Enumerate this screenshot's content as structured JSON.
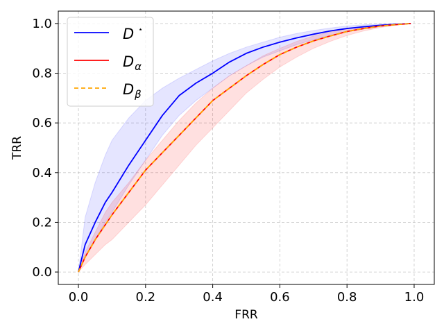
{
  "chart_data": {
    "type": "line",
    "xlabel": "FRR",
    "ylabel": "TRR",
    "xlim": [
      -0.06,
      1.06
    ],
    "ylim": [
      -0.05,
      1.05
    ],
    "xticks": [
      0.0,
      0.2,
      0.4,
      0.6,
      0.8,
      1.0
    ],
    "yticks": [
      0.0,
      0.2,
      0.4,
      0.6,
      0.8,
      1.0
    ],
    "xtick_labels": [
      "0.0",
      "0.2",
      "0.4",
      "0.6",
      "0.8",
      "1.0"
    ],
    "ytick_labels": [
      "0.0",
      "0.2",
      "0.4",
      "0.6",
      "0.8",
      "1.0"
    ],
    "grid": true,
    "legend_position": "top-left",
    "series": [
      {
        "name": "D*",
        "legend_base": "D",
        "legend_mark": "⋆",
        "color": "#0000ff",
        "dash": "solid",
        "x": [
          0.0,
          0.02,
          0.05,
          0.08,
          0.1,
          0.15,
          0.2,
          0.25,
          0.3,
          0.35,
          0.4,
          0.45,
          0.5,
          0.55,
          0.6,
          0.65,
          0.7,
          0.75,
          0.8,
          0.85,
          0.9,
          0.95,
          0.99
        ],
        "y": [
          0.0,
          0.11,
          0.2,
          0.28,
          0.32,
          0.43,
          0.53,
          0.63,
          0.71,
          0.76,
          0.8,
          0.845,
          0.88,
          0.905,
          0.925,
          0.942,
          0.957,
          0.97,
          0.98,
          0.987,
          0.993,
          0.997,
          1.0
        ],
        "band_low": [
          0.0,
          0.06,
          0.13,
          0.2,
          0.24,
          0.35,
          0.45,
          0.55,
          0.63,
          0.69,
          0.74,
          0.79,
          0.83,
          0.865,
          0.89,
          0.915,
          0.935,
          0.952,
          0.967,
          0.978,
          0.988,
          0.995,
          1.0
        ],
        "band_high": [
          0.0,
          0.22,
          0.36,
          0.47,
          0.53,
          0.62,
          0.69,
          0.74,
          0.78,
          0.815,
          0.85,
          0.88,
          0.905,
          0.925,
          0.945,
          0.96,
          0.972,
          0.982,
          0.99,
          0.995,
          0.998,
          1.0,
          1.0
        ],
        "band_color": "#0000ff",
        "band_opacity": 0.1
      },
      {
        "name": "Dα",
        "legend_base": "D",
        "legend_sub": "α",
        "color": "#ff0000",
        "dash": "solid",
        "x": [
          0.0,
          0.02,
          0.05,
          0.08,
          0.1,
          0.15,
          0.2,
          0.25,
          0.3,
          0.35,
          0.4,
          0.45,
          0.5,
          0.55,
          0.6,
          0.65,
          0.7,
          0.75,
          0.8,
          0.85,
          0.9,
          0.95,
          0.99
        ],
        "y": [
          0.0,
          0.06,
          0.13,
          0.19,
          0.23,
          0.32,
          0.41,
          0.48,
          0.55,
          0.62,
          0.69,
          0.74,
          0.79,
          0.835,
          0.875,
          0.905,
          0.93,
          0.95,
          0.968,
          0.98,
          0.99,
          0.996,
          1.0
        ],
        "band_low": [
          0.0,
          0.03,
          0.07,
          0.11,
          0.13,
          0.2,
          0.27,
          0.35,
          0.43,
          0.51,
          0.58,
          0.65,
          0.72,
          0.775,
          0.825,
          0.865,
          0.9,
          0.928,
          0.952,
          0.97,
          0.984,
          0.994,
          1.0
        ],
        "band_high": [
          0.0,
          0.08,
          0.16,
          0.24,
          0.28,
          0.36,
          0.45,
          0.53,
          0.61,
          0.68,
          0.74,
          0.79,
          0.83,
          0.87,
          0.9,
          0.928,
          0.95,
          0.966,
          0.979,
          0.988,
          0.995,
          0.998,
          1.0
        ],
        "band_color": "#ff0000",
        "band_opacity": 0.12
      },
      {
        "name": "Dβ",
        "legend_base": "D",
        "legend_sub": "β",
        "color": "#ffa500",
        "dash": "dashed",
        "x": [
          0.0,
          0.02,
          0.05,
          0.08,
          0.1,
          0.15,
          0.2,
          0.25,
          0.3,
          0.35,
          0.4,
          0.45,
          0.5,
          0.55,
          0.6,
          0.65,
          0.7,
          0.75,
          0.8,
          0.85,
          0.9,
          0.95,
          0.99
        ],
        "y": [
          0.0,
          0.06,
          0.13,
          0.19,
          0.23,
          0.32,
          0.41,
          0.48,
          0.55,
          0.62,
          0.69,
          0.74,
          0.79,
          0.835,
          0.875,
          0.905,
          0.93,
          0.95,
          0.968,
          0.98,
          0.99,
          0.996,
          1.0
        ]
      }
    ]
  }
}
